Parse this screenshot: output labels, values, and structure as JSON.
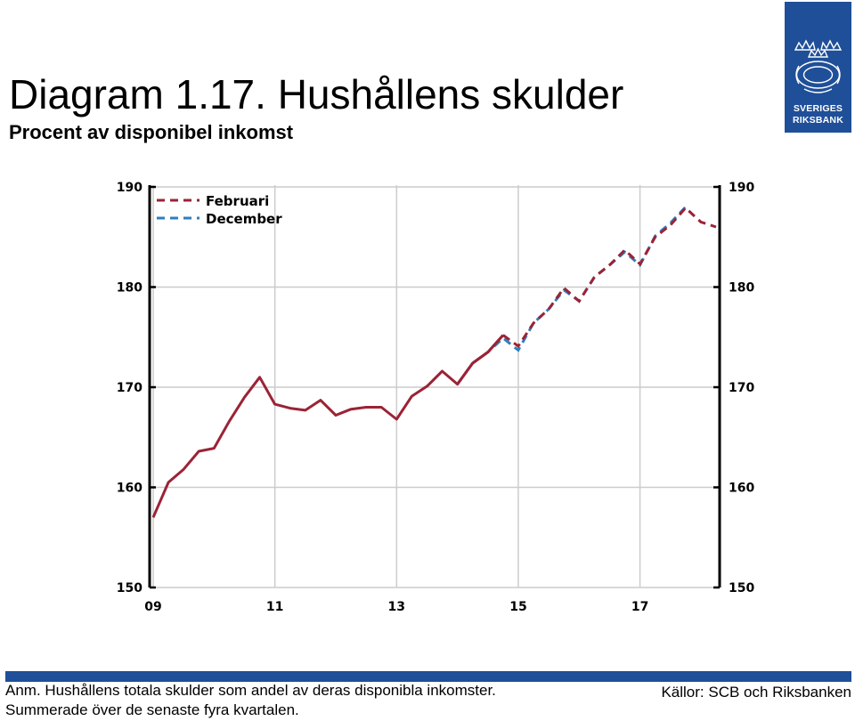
{
  "title": "Diagram 1.17. Hushållens skulder",
  "subtitle": "Procent av disponibel inkomst",
  "logo": {
    "line1": "SVERIGES",
    "line2": "RIKSBANK"
  },
  "footer": {
    "note_line1": "Anm. Hushållens totala skulder som andel av deras disponibla inkomster.",
    "note_line2": "Summerade över de senaste fyra kvartalen.",
    "sources": "Källor: SCB och Riksbanken"
  },
  "colors": {
    "februari": "#9b2335",
    "december": "#2e7fbf",
    "brand": "#1f4f98"
  },
  "chart_data": {
    "type": "line",
    "title": "Diagram 1.17. Hushållens skulder",
    "subtitle": "Procent av disponibel inkomst",
    "xlabel": "",
    "ylabel": "",
    "ylim": [
      150,
      190
    ],
    "yticks": [
      150,
      160,
      170,
      180,
      190
    ],
    "y_axis_sides": [
      "left",
      "right"
    ],
    "xlim": [
      2009.0,
      2018.25
    ],
    "xticks": [
      {
        "value": 2009,
        "label": "09"
      },
      {
        "value": 2011,
        "label": "11"
      },
      {
        "value": 2013,
        "label": "13"
      },
      {
        "value": 2015,
        "label": "15"
      },
      {
        "value": 2017,
        "label": "17"
      }
    ],
    "grid": true,
    "legend_position": "top-left",
    "forecast_start": 2014.75,
    "series": [
      {
        "name": "Februari",
        "color": "#9b2335",
        "x": [
          2009.0,
          2009.25,
          2009.5,
          2009.75,
          2010.0,
          2010.25,
          2010.5,
          2010.75,
          2011.0,
          2011.25,
          2011.5,
          2011.75,
          2012.0,
          2012.25,
          2012.5,
          2012.75,
          2013.0,
          2013.25,
          2013.5,
          2013.75,
          2014.0,
          2014.25,
          2014.5,
          2014.75,
          2015.0,
          2015.25,
          2015.5,
          2015.75,
          2016.0,
          2016.25,
          2016.5,
          2016.75,
          2017.0,
          2017.25,
          2017.5,
          2017.75,
          2018.0,
          2018.25
        ],
        "values": [
          157.0,
          160.5,
          161.8,
          163.6,
          163.9,
          166.6,
          169.0,
          171.0,
          168.3,
          167.9,
          167.7,
          168.7,
          167.2,
          167.8,
          168.0,
          168.0,
          166.8,
          169.1,
          170.1,
          171.6,
          170.3,
          172.4,
          173.5,
          175.2,
          174.1,
          176.4,
          177.8,
          179.9,
          178.6,
          181.0,
          182.2,
          183.7,
          182.3,
          185.0,
          186.2,
          187.9,
          186.5,
          186.0
        ],
        "line_style": "solid until 2014.75, dashed after"
      },
      {
        "name": "December",
        "color": "#2e7fbf",
        "x": [
          2014.0,
          2014.25,
          2014.5,
          2014.75,
          2015.0,
          2015.25,
          2015.5,
          2015.75,
          2016.0,
          2016.25,
          2016.5,
          2016.75,
          2017.0,
          2017.25,
          2017.5,
          2017.75
        ],
        "values": [
          170.3,
          172.4,
          173.5,
          174.9,
          173.7,
          176.4,
          177.8,
          179.7,
          178.6,
          181.0,
          182.2,
          183.5,
          182.2,
          185.1,
          186.4,
          188.0
        ],
        "line_style": "dashed"
      }
    ]
  }
}
